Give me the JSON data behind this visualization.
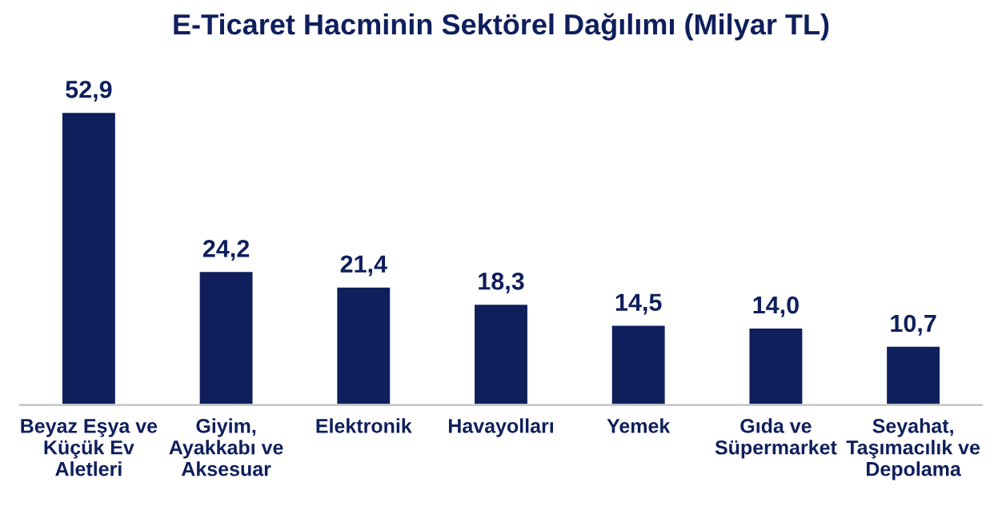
{
  "chart_data": {
    "type": "bar",
    "title": "E-Ticaret Hacminin Sektörel Dağılımı (Milyar TL)",
    "categories": [
      "Beyaz Eşya ve\nKüçük Ev\nAletleri",
      "Giyim,\nAyakkabı ve\nAksesuar",
      "Elektronik",
      "Havayolları",
      "Yemek",
      "Gıda ve\nSüpermarket",
      "Seyahat,\nTaşımacılık ve\nDepolama"
    ],
    "values": [
      52.9,
      24.2,
      21.4,
      18.3,
      14.5,
      14.0,
      10.7
    ],
    "value_labels": [
      "52,9",
      "24,2",
      "21,4",
      "18,3",
      "14,5",
      "14,0",
      "10,7"
    ],
    "color": "#0f1f5c",
    "grid": false,
    "legend": false
  }
}
